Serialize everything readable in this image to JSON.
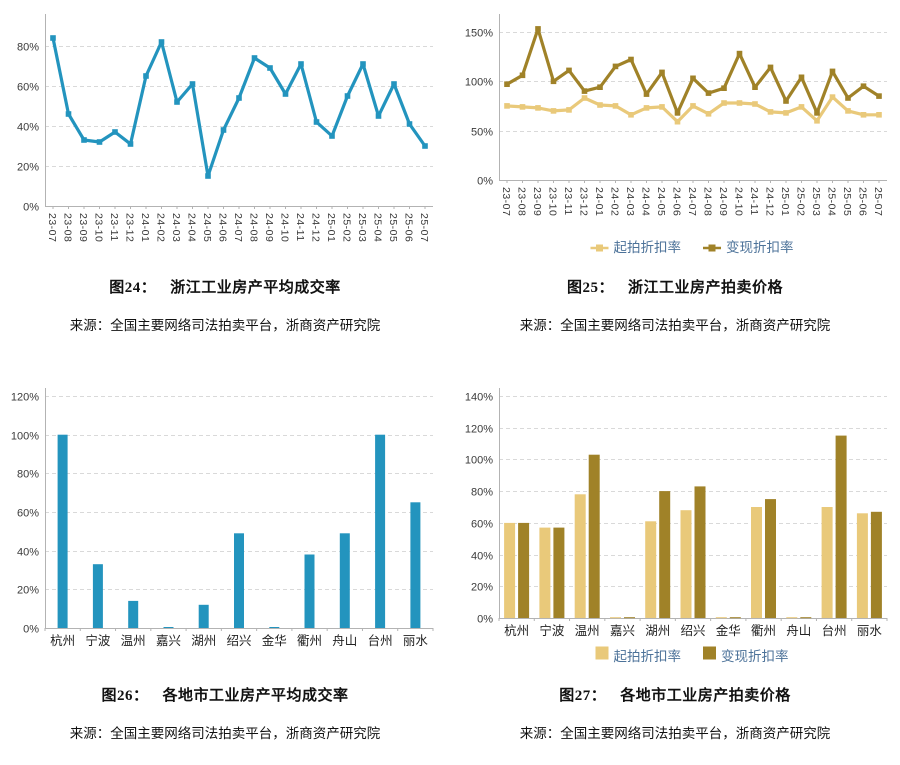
{
  "colors": {
    "blue": "#2394BE",
    "gold_light": "#E9C97A",
    "gold_dark": "#A08228",
    "legend_text": "#4C7299",
    "grid": "#D9D9D9",
    "axis": "#B3B3B3",
    "tick_text": "#3A3A3A",
    "category_text": "#222222"
  },
  "figures": [
    {
      "caption_prefix": "图24：",
      "caption_title": "浙江工业房产平均成交率",
      "source": "来源：全国主要网络司法拍卖平台，浙商资产研究院"
    },
    {
      "caption_prefix": "图25：",
      "caption_title": "浙江工业房产拍卖价格",
      "source": "来源：全国主要网络司法拍卖平台，浙商资产研究院"
    },
    {
      "caption_prefix": "图26：",
      "caption_title": "各地市工业房产平均成交率",
      "source": "来源：全国主要网络司法拍卖平台，浙商资产研究院"
    },
    {
      "caption_prefix": "图27：",
      "caption_title": "各地市工业房产拍卖价格",
      "source": "来源：全国主要网络司法拍卖平台，浙商资产研究院"
    }
  ],
  "chart_data": [
    {
      "id": "chart24",
      "type": "line",
      "title": "浙江工业房产平均成交率",
      "x": [
        "23-07",
        "23-08",
        "23-09",
        "23-10",
        "23-11",
        "23-12",
        "24-01",
        "24-02",
        "24-03",
        "24-04",
        "24-05",
        "24-06",
        "24-07",
        "24-08",
        "24-09",
        "24-10",
        "24-11",
        "24-12",
        "25-01",
        "25-02",
        "25-03",
        "25-04",
        "25-05",
        "25-06",
        "25-07"
      ],
      "series": [
        {
          "name": "平均成交率",
          "color": "#2394BE",
          "values": [
            84,
            46,
            33,
            32,
            37,
            31,
            65,
            82,
            52,
            61,
            15,
            38,
            54,
            74,
            69,
            56,
            71,
            42,
            35,
            55,
            71,
            45,
            61,
            41,
            30
          ]
        }
      ],
      "ylim": [
        0,
        92
      ],
      "yticks": [
        0,
        20,
        40,
        60,
        80
      ],
      "grid": "dashed-horizontal",
      "legend": "none",
      "xtick_rotation": 90
    },
    {
      "id": "chart25",
      "type": "line",
      "title": "浙江工业房产拍卖价格",
      "x": [
        "23-07",
        "23-08",
        "23-09",
        "23-10",
        "23-11",
        "23-12",
        "24-01",
        "24-02",
        "24-03",
        "24-04",
        "24-05",
        "24-06",
        "24-07",
        "24-08",
        "24-09",
        "24-10",
        "24-11",
        "24-12",
        "25-01",
        "25-02",
        "25-03",
        "25-04",
        "25-05",
        "25-06",
        "25-07"
      ],
      "series": [
        {
          "name": "起拍折扣率",
          "color": "#E9C97A",
          "values": [
            75,
            74,
            73,
            70,
            71,
            83,
            76,
            75,
            66,
            73,
            74,
            59,
            75,
            67,
            78,
            78,
            77,
            69,
            68,
            74,
            60,
            84,
            70,
            66,
            66
          ]
        },
        {
          "name": "变现折扣率",
          "color": "#A08228",
          "values": [
            97,
            106,
            153,
            100,
            111,
            90,
            94,
            115,
            122,
            87,
            109,
            68,
            103,
            88,
            93,
            128,
            94,
            114,
            80,
            104,
            68,
            110,
            83,
            95,
            85
          ]
        }
      ],
      "ylim": [
        0,
        160
      ],
      "yticks": [
        0,
        50,
        100,
        150
      ],
      "grid": "dashed-horizontal",
      "legend": "below",
      "xtick_rotation": 90
    },
    {
      "id": "chart26",
      "type": "bar",
      "title": "各地市工业房产平均成交率",
      "x": [
        "杭州",
        "宁波",
        "温州",
        "嘉兴",
        "湖州",
        "绍兴",
        "金华",
        "衢州",
        "舟山",
        "台州",
        "丽水"
      ],
      "series": [
        {
          "name": "平均成交率",
          "color": "#2394BE",
          "values": [
            100,
            33,
            14,
            0.5,
            12,
            49,
            0.5,
            38,
            49,
            100,
            65
          ]
        }
      ],
      "ylim": [
        0,
        120
      ],
      "yticks": [
        0,
        20,
        40,
        60,
        80,
        100,
        120
      ],
      "grid": "dashed-horizontal",
      "legend": "none",
      "xtick_rotation": 0
    },
    {
      "id": "chart27",
      "type": "bar",
      "title": "各地市工业房产拍卖价格",
      "x": [
        "杭州",
        "宁波",
        "温州",
        "嘉兴",
        "湖州",
        "绍兴",
        "金华",
        "衢州",
        "舟山",
        "台州",
        "丽水"
      ],
      "series": [
        {
          "name": "起拍折扣率",
          "color": "#E9C97A",
          "values": [
            60,
            57,
            78,
            0.5,
            61,
            68,
            0.5,
            70,
            0.5,
            70,
            66
          ]
        },
        {
          "name": "变现折扣率",
          "color": "#A08228",
          "values": [
            60,
            57,
            103,
            0.5,
            80,
            83,
            0.5,
            75,
            0.5,
            115,
            67
          ]
        }
      ],
      "ylim": [
        0,
        140
      ],
      "yticks": [
        0,
        20,
        40,
        60,
        80,
        100,
        120,
        140
      ],
      "grid": "dashed-horizontal",
      "legend": "below",
      "xtick_rotation": 0
    }
  ]
}
